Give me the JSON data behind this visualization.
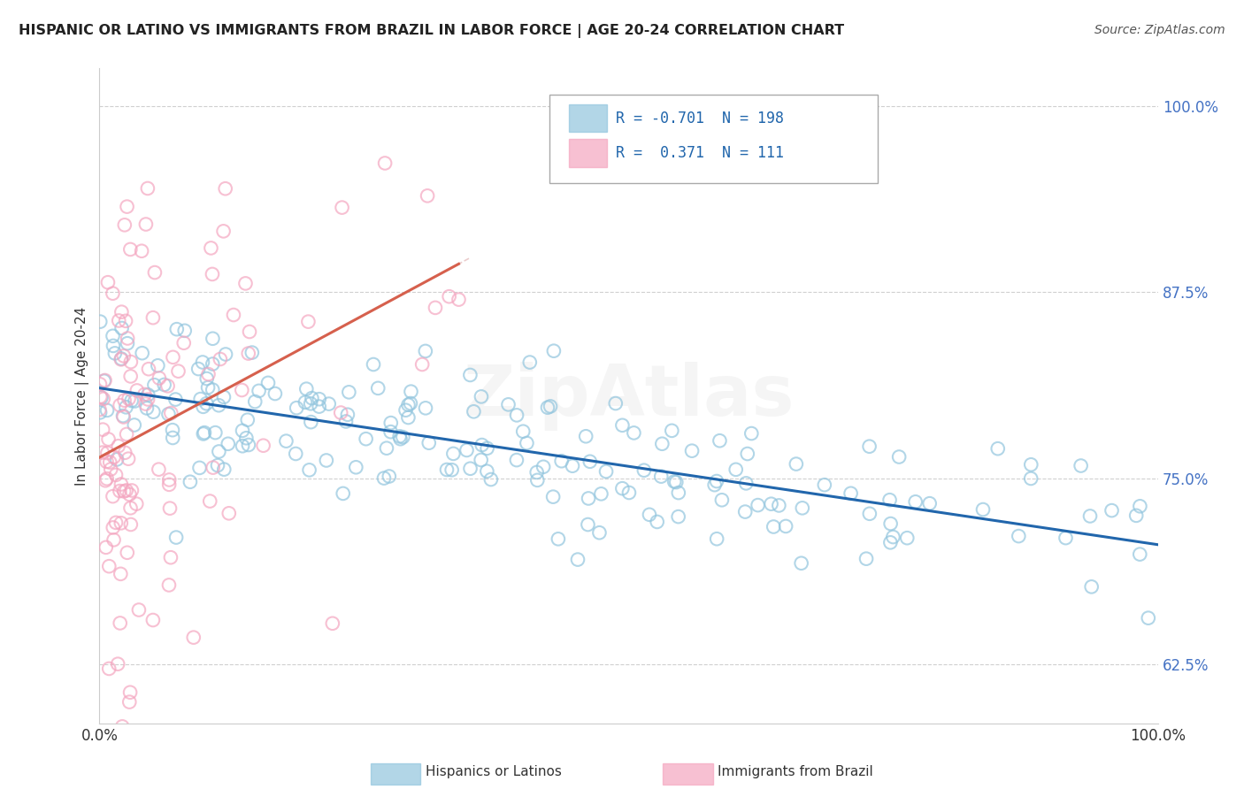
{
  "title": "HISPANIC OR LATINO VS IMMIGRANTS FROM BRAZIL IN LABOR FORCE | AGE 20-24 CORRELATION CHART",
  "source": "Source: ZipAtlas.com",
  "ylabel": "In Labor Force | Age 20-24",
  "xlim": [
    0.0,
    1.0
  ],
  "ylim": [
    0.585,
    1.025
  ],
  "yticks": [
    0.625,
    0.75,
    0.875,
    1.0
  ],
  "ytick_labels": [
    "62.5%",
    "75.0%",
    "87.5%",
    "100.0%"
  ],
  "xticks": [
    0.0,
    1.0
  ],
  "xtick_labels": [
    "0.0%",
    "100.0%"
  ],
  "blue_R": -0.701,
  "blue_N": 198,
  "pink_R": 0.371,
  "pink_N": 111,
  "blue_color": "#92c5de",
  "pink_color": "#f4a6c0",
  "blue_line_color": "#2166ac",
  "pink_line_color": "#d6604d",
  "background_color": "#ffffff",
  "grid_color": "#d0d0d0",
  "watermark": "ZipAtlas"
}
